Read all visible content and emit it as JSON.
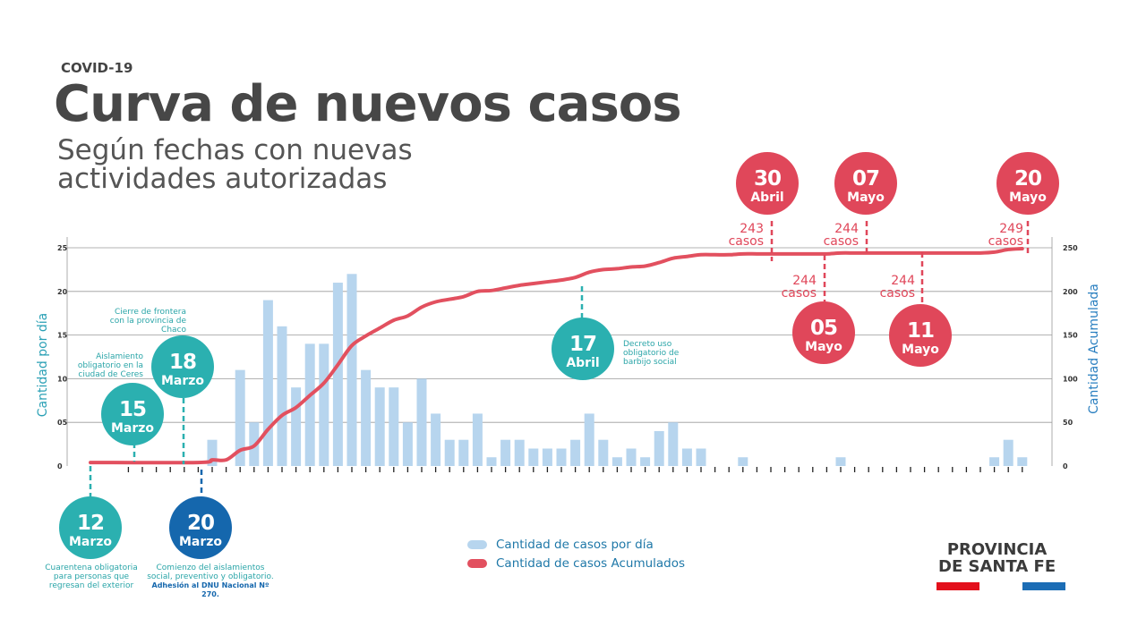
{
  "header": {
    "kicker": "COVID-19",
    "title": "Curva de nuevos casos",
    "subtitle": "Según fechas con nuevas actividades autorizadas"
  },
  "chart_data": {
    "type": "bar",
    "title": "Curva de nuevos casos",
    "ylabel": "Cantidad por día",
    "y2label": "Cantidad Acumulada",
    "ylim": [
      0,
      25
    ],
    "y2lim": [
      0,
      250
    ],
    "yticks": [
      "0",
      "05",
      "10",
      "15",
      "20",
      "25"
    ],
    "y2ticks": [
      "0",
      "50",
      "100",
      "150",
      "200",
      "250"
    ],
    "grid": true,
    "legend_position": "bottom",
    "series": [
      {
        "name": "Cantidad de casos por día",
        "type": "bar",
        "color": "#b7d5ee",
        "values": [
          3,
          0,
          11,
          5,
          19,
          16,
          9,
          14,
          14,
          21,
          22,
          11,
          9,
          9,
          5,
          10,
          6,
          3,
          3,
          6,
          1,
          3,
          3,
          2,
          2,
          2,
          3,
          6,
          3,
          1,
          2,
          1,
          4,
          5,
          2,
          2,
          0,
          0,
          1,
          0,
          0,
          0,
          0,
          0,
          0,
          1,
          0,
          0,
          0,
          0,
          0,
          0,
          0,
          0,
          0,
          0,
          1,
          3,
          1
        ]
      },
      {
        "name": "Cantidad de casos Acumulados",
        "type": "line",
        "color": "#e2505f",
        "values": [
          7,
          7,
          18,
          23,
          42,
          58,
          67,
          81,
          95,
          116,
          138,
          149,
          158,
          167,
          172,
          182,
          188,
          191,
          194,
          200,
          201,
          204,
          207,
          209,
          211,
          213,
          216,
          222,
          225,
          226,
          228,
          229,
          233,
          238,
          240,
          242,
          242,
          242,
          243,
          243,
          243,
          243,
          243,
          243,
          243,
          244,
          244,
          244,
          244,
          244,
          244,
          244,
          244,
          244,
          244,
          244,
          245,
          248,
          249
        ]
      }
    ]
  },
  "events": [
    {
      "day": "12",
      "month": "Marzo",
      "color": "#2bb0b0",
      "note": "Cuarentena obligatoria para personas que regresan del exterior"
    },
    {
      "day": "15",
      "month": "Marzo",
      "color": "#2bb0b0",
      "note": "Aislamiento obligatorio en la ciudad de Ceres"
    },
    {
      "day": "18",
      "month": "Marzo",
      "color": "#2bb0b0",
      "note": "Cierre de frontera con la provincia de Chaco"
    },
    {
      "day": "20",
      "month": "Marzo",
      "color": "#1567ad",
      "note": "Comienzo del aislamientos social, preventivo y obligatorio.",
      "note_bold": "Adhesión al DNU Nacional Nº 270."
    },
    {
      "day": "17",
      "month": "Abril",
      "color": "#2bb0b0",
      "note": "Decreto uso obligatorio de barbijo social"
    },
    {
      "day": "30",
      "month": "Abril",
      "color": "#e0475a",
      "cases": "243",
      "cases_unit": "casos"
    },
    {
      "day": "05",
      "month": "Mayo",
      "color": "#e0475a",
      "cases": "244",
      "cases_unit": "casos"
    },
    {
      "day": "07",
      "month": "Mayo",
      "color": "#e0475a",
      "cases": "244",
      "cases_unit": "casos"
    },
    {
      "day": "11",
      "month": "Mayo",
      "color": "#e0475a",
      "cases": "244",
      "cases_unit": "casos"
    },
    {
      "day": "20",
      "month": "Mayo",
      "color": "#e0475a",
      "cases": "249",
      "cases_unit": "casos"
    }
  ],
  "legend": {
    "daily": "Cantidad de casos por día",
    "cumulative": "Cantidad de casos Acumulados"
  },
  "logo": {
    "line1": "PROVINCIA",
    "line2": "DE SANTA FE",
    "colors": [
      "#e3101c",
      "#1c6db5"
    ]
  }
}
